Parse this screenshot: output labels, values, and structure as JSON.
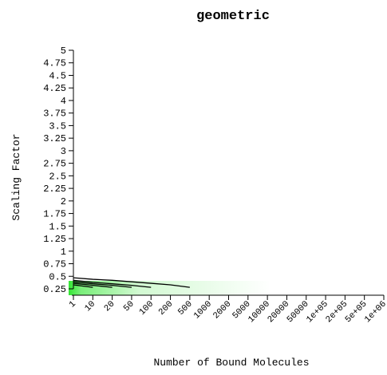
{
  "chart_data": {
    "type": "line",
    "title": "geometric",
    "xlabel": "Number of Bound Molecules",
    "ylabel": "Scaling Factor",
    "ylim": [
      0.25,
      5
    ],
    "y_ticks": [
      "0.25",
      "0.5",
      "0.75",
      "1",
      "1.25",
      "1.5",
      "1.75",
      "2",
      "2.25",
      "2.5",
      "2.75",
      "3",
      "3.25",
      "3.5",
      "3.75",
      "4",
      "4.25",
      "4.5",
      "4.75",
      "5"
    ],
    "x_ticks": [
      "1",
      "10",
      "20",
      "50",
      "100",
      "200",
      "500",
      "1000",
      "2000",
      "5000",
      "10000",
      "20000",
      "50000",
      "1e+05",
      "2e+05",
      "5e+05",
      "1e+06"
    ],
    "grid": false,
    "legend": "none",
    "background_gradient": {
      "color": "#33e633",
      "from_tick": "1",
      "to_tick": "10000"
    },
    "series": [
      {
        "x": [
          "1",
          "10",
          "20",
          "50",
          "100",
          "200",
          "500"
        ],
        "y": [
          0.47,
          0.44,
          0.42,
          0.39,
          0.36,
          0.33,
          0.28
        ]
      },
      {
        "x": [
          "1",
          "10",
          "20",
          "50",
          "100"
        ],
        "y": [
          0.42,
          0.38,
          0.35,
          0.32,
          0.28
        ]
      },
      {
        "x": [
          "1",
          "10",
          "20",
          "50"
        ],
        "y": [
          0.39,
          0.35,
          0.32,
          0.28
        ]
      },
      {
        "x": [
          "1",
          "10",
          "20"
        ],
        "y": [
          0.36,
          0.32,
          0.28
        ]
      },
      {
        "x": [
          "1",
          "10"
        ],
        "y": [
          0.33,
          0.28
        ]
      }
    ]
  }
}
